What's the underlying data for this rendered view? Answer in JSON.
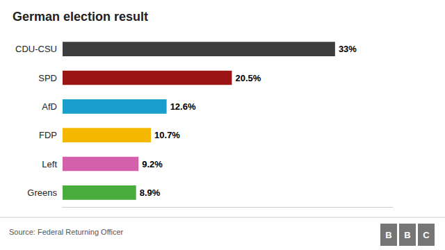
{
  "chart_data": {
    "type": "bar",
    "orientation": "horizontal",
    "title": "German election result",
    "categories": [
      "CDU-CSU",
      "SPD",
      "AfD",
      "FDP",
      "Left",
      "Greens"
    ],
    "values": [
      33.0,
      20.5,
      12.6,
      10.7,
      9.2,
      8.9
    ],
    "value_labels": [
      "33%",
      "20.5%",
      "12.6%",
      "10.7%",
      "9.2%",
      "8.9%"
    ],
    "colors": [
      "#3d3d3d",
      "#9b1515",
      "#1a9fcc",
      "#f5b800",
      "#d45faa",
      "#4aac3c"
    ],
    "xlim": [
      0,
      40
    ],
    "tick_labels": "y",
    "grid": false,
    "annotations": [
      "Source: Federal Returning Officer",
      "BBC"
    ]
  }
}
